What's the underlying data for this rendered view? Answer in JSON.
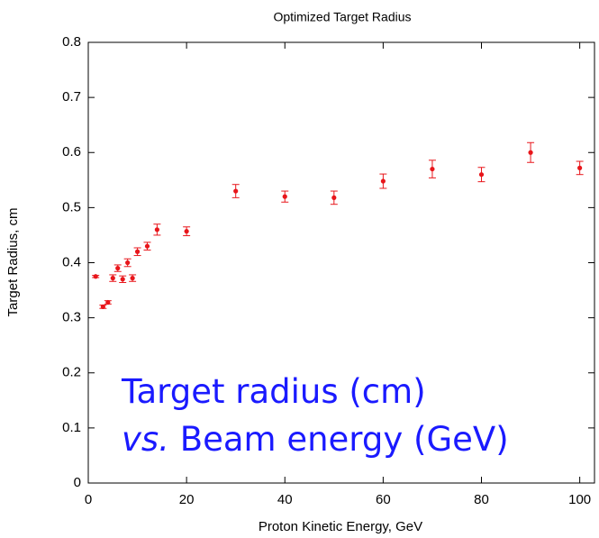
{
  "chart_data": {
    "type": "scatter",
    "title": "Optimized Target Radius",
    "xlabel": "Proton Kinetic Energy, GeV",
    "ylabel": "Target Radius, cm",
    "x": [
      1.5,
      3,
      4,
      5,
      6,
      7,
      8,
      9,
      10,
      12,
      14,
      20,
      30,
      40,
      50,
      60,
      70,
      80,
      90,
      100
    ],
    "values": [
      0.375,
      0.32,
      0.328,
      0.372,
      0.39,
      0.37,
      0.4,
      0.372,
      0.42,
      0.43,
      0.46,
      0.457,
      0.53,
      0.52,
      0.518,
      0.548,
      0.57,
      0.56,
      0.6,
      0.572
    ],
    "errors": [
      0.002,
      0.003,
      0.003,
      0.006,
      0.006,
      0.006,
      0.007,
      0.006,
      0.007,
      0.007,
      0.01,
      0.008,
      0.012,
      0.01,
      0.012,
      0.013,
      0.016,
      0.013,
      0.018,
      0.012
    ],
    "color": "#e8161b",
    "xlim": [
      0,
      103
    ],
    "ylim": [
      0,
      0.8
    ],
    "xticks": [
      0,
      20,
      40,
      60,
      80,
      100
    ],
    "yticks": [
      0,
      0.1,
      0.2,
      0.3,
      0.4,
      0.5,
      0.6,
      0.7,
      0.8
    ],
    "annotations": [
      "Target radius (cm)",
      "vs.",
      "Beam energy (GeV)"
    ]
  }
}
